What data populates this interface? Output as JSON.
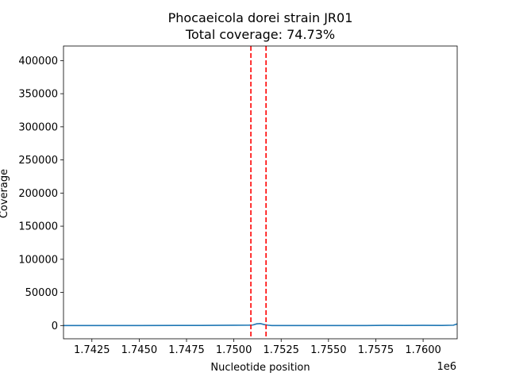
{
  "chart_data": {
    "type": "line",
    "title": "Phocaeicola dorei strain JR01",
    "subtitle": "Total coverage: 74.73%",
    "xlabel": "Nucleotide position",
    "ylabel": "Coverage",
    "x_offset_label": "1e6",
    "xlim": [
      1.741,
      1.7618
    ],
    "ylim": [
      -20000,
      422000
    ],
    "x_ticks": [
      1.7425,
      1.745,
      1.7475,
      1.75,
      1.7525,
      1.755,
      1.7575,
      1.76
    ],
    "x_tick_labels": [
      "1.7425",
      "1.7450",
      "1.7475",
      "1.7500",
      "1.7525",
      "1.7550",
      "1.7575",
      "1.7600"
    ],
    "y_ticks": [
      0,
      50000,
      100000,
      150000,
      200000,
      250000,
      300000,
      350000,
      400000
    ],
    "y_tick_labels": [
      "0",
      "50000",
      "100000",
      "150000",
      "200000",
      "250000",
      "300000",
      "350000",
      "400000"
    ],
    "grid": false,
    "series": [
      {
        "color": "#1f77b4",
        "x": [
          1.741,
          1.743,
          1.745,
          1.747,
          1.748,
          1.749,
          1.75,
          1.7508,
          1.751,
          1.7512,
          1.7514,
          1.7516,
          1.7518,
          1.752,
          1.7525,
          1.753,
          1.755,
          1.757,
          1.758,
          1.759,
          1.76,
          1.761,
          1.7616,
          1.7618
        ],
        "y": [
          0,
          0,
          0,
          200,
          100,
          300,
          500,
          600,
          800,
          2500,
          3000,
          1500,
          500,
          0,
          0,
          0,
          0,
          0,
          300,
          200,
          300,
          100,
          500,
          2500
        ]
      }
    ],
    "vlines": {
      "color": "#ff0000",
      "style": "dashed",
      "x": [
        1.7509,
        1.7517
      ]
    }
  }
}
